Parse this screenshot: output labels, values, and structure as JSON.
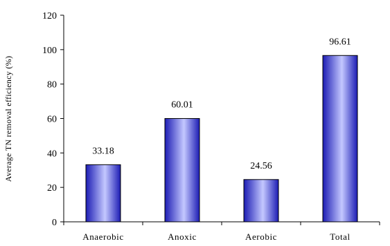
{
  "chart_data": {
    "type": "bar",
    "categories": [
      "Anaerobic",
      "Anoxic",
      "Aerobic",
      "Total"
    ],
    "values": [
      33.18,
      60.01,
      24.56,
      96.61
    ],
    "value_labels": [
      "33.18",
      "60.01",
      "24.56",
      "96.61"
    ],
    "title": "",
    "xlabel": "",
    "ylabel": "Average TN removal efficiency  (%)",
    "ylim": [
      0,
      120
    ],
    "yticks": [
      0,
      20,
      40,
      60,
      80,
      100,
      120
    ],
    "ytick_labels": [
      "0",
      "20",
      "40",
      "60",
      "80",
      "100",
      "120"
    ],
    "grid": false,
    "legend": "none",
    "colors": {
      "bar_dark": "#1c1cb4",
      "bar_light": "#c4c8ff",
      "bar_edge": "#000000"
    }
  }
}
